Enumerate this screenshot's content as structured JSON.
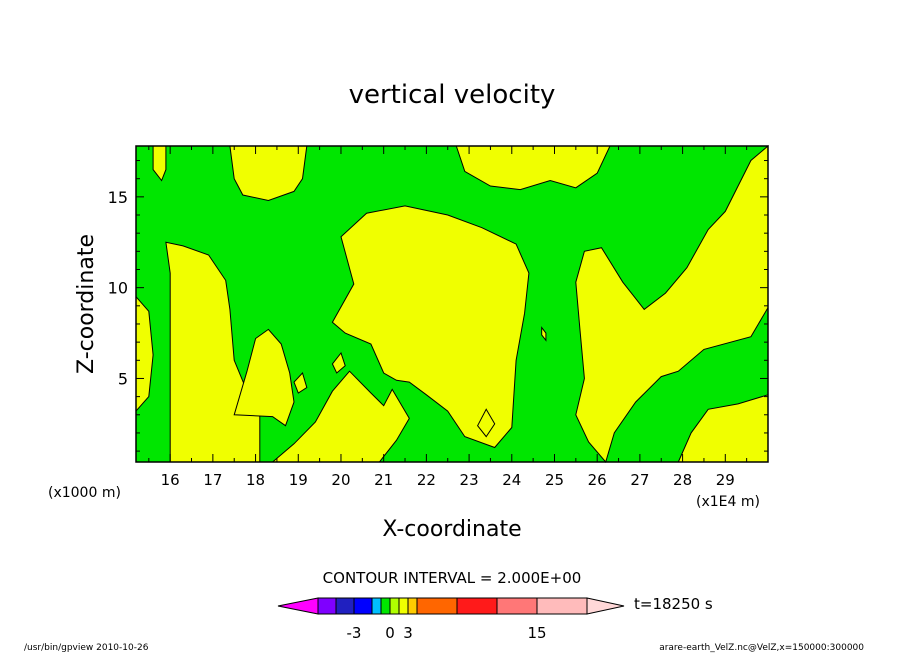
{
  "chart_data": {
    "type": "heatmap",
    "title": "vertical velocity",
    "xlabel": "X-coordinate",
    "ylabel": "Z-coordinate",
    "x_unit_left": "(x1000 m)",
    "x_unit_right": "(x1E4 m)",
    "xlim": [
      15.2,
      30.0
    ],
    "ylim": [
      0.4,
      17.8
    ],
    "x_ticks": [
      "16",
      "17",
      "18",
      "19",
      "20",
      "21",
      "22",
      "23",
      "24",
      "25",
      "26",
      "27",
      "28",
      "29"
    ],
    "y_ticks": [
      "5",
      "10",
      "15"
    ],
    "contour_interval_text": "CONTOUR INTERVAL = 2.000E+00",
    "time_label": "t=18250 s",
    "colors": {
      "low": "#00e600",
      "high": "#f0ff00",
      "outline": "#000000"
    },
    "regions": [
      {
        "name": "top-left-streak",
        "points": [
          [
            15.6,
            17.8
          ],
          [
            15.9,
            17.8
          ],
          [
            15.9,
            16.5
          ],
          [
            15.8,
            15.9
          ],
          [
            15.6,
            16.5
          ]
        ]
      },
      {
        "name": "top-upper-middle",
        "points": [
          [
            17.4,
            17.8
          ],
          [
            19.2,
            17.8
          ],
          [
            19.1,
            16.0
          ],
          [
            18.9,
            15.3
          ],
          [
            18.3,
            14.8
          ],
          [
            17.7,
            15.1
          ],
          [
            17.5,
            16.0
          ]
        ]
      },
      {
        "name": "top-upper-right",
        "points": [
          [
            22.7,
            17.8
          ],
          [
            26.3,
            17.8
          ],
          [
            26.0,
            16.3
          ],
          [
            25.5,
            15.5
          ],
          [
            24.9,
            15.9
          ],
          [
            24.2,
            15.4
          ],
          [
            23.5,
            15.6
          ],
          [
            22.9,
            16.4
          ]
        ]
      },
      {
        "name": "left-column",
        "points": [
          [
            16.0,
            0.4
          ],
          [
            16.0,
            10.8
          ],
          [
            15.9,
            12.5
          ],
          [
            16.3,
            12.3
          ],
          [
            16.9,
            11.8
          ],
          [
            17.3,
            10.4
          ],
          [
            17.4,
            8.8
          ],
          [
            17.5,
            6.0
          ],
          [
            17.8,
            4.3
          ],
          [
            18.1,
            2.9
          ],
          [
            18.1,
            0.4
          ]
        ]
      },
      {
        "name": "left-strips",
        "points": [
          [
            15.2,
            9.5
          ],
          [
            15.5,
            8.7
          ],
          [
            15.6,
            6.3
          ],
          [
            15.5,
            4.0
          ],
          [
            15.2,
            3.2
          ]
        ]
      },
      {
        "name": "lower-left-bump",
        "points": [
          [
            17.5,
            3.0
          ],
          [
            17.8,
            5.4
          ],
          [
            18.0,
            7.2
          ],
          [
            18.3,
            7.7
          ],
          [
            18.6,
            6.9
          ],
          [
            18.8,
            5.3
          ],
          [
            18.9,
            3.7
          ],
          [
            18.7,
            2.4
          ],
          [
            18.4,
            2.9
          ]
        ]
      },
      {
        "name": "central-blob",
        "points": [
          [
            19.8,
            8.1
          ],
          [
            20.3,
            10.2
          ],
          [
            20.0,
            12.8
          ],
          [
            20.6,
            14.1
          ],
          [
            21.5,
            14.5
          ],
          [
            22.5,
            14.0
          ],
          [
            23.3,
            13.3
          ],
          [
            24.1,
            12.4
          ],
          [
            24.4,
            10.8
          ],
          [
            24.3,
            8.6
          ],
          [
            24.1,
            6.0
          ],
          [
            24.0,
            2.3
          ],
          [
            23.6,
            1.2
          ],
          [
            22.9,
            1.8
          ],
          [
            22.5,
            3.2
          ],
          [
            22.0,
            4.1
          ],
          [
            21.6,
            4.8
          ],
          [
            21.3,
            4.9
          ],
          [
            21.0,
            5.3
          ],
          [
            20.7,
            6.9
          ],
          [
            20.1,
            7.5
          ]
        ]
      },
      {
        "name": "lower-middle-band",
        "points": [
          [
            18.4,
            0.4
          ],
          [
            18.9,
            1.4
          ],
          [
            19.4,
            2.6
          ],
          [
            19.8,
            4.3
          ],
          [
            20.2,
            5.4
          ],
          [
            20.7,
            4.2
          ],
          [
            21.0,
            3.5
          ],
          [
            21.2,
            4.4
          ],
          [
            21.6,
            2.8
          ],
          [
            21.3,
            1.6
          ],
          [
            20.9,
            0.4
          ]
        ]
      },
      {
        "name": "right-blob",
        "points": [
          [
            26.2,
            0.4
          ],
          [
            26.4,
            2.0
          ],
          [
            26.9,
            3.7
          ],
          [
            27.5,
            5.1
          ],
          [
            27.9,
            5.4
          ],
          [
            28.5,
            6.6
          ],
          [
            29.6,
            7.3
          ],
          [
            30.0,
            8.9
          ],
          [
            30.0,
            17.8
          ],
          [
            29.6,
            17.0
          ],
          [
            29.0,
            14.2
          ],
          [
            28.6,
            13.2
          ],
          [
            28.1,
            11.1
          ],
          [
            27.6,
            9.7
          ],
          [
            27.1,
            8.8
          ],
          [
            26.6,
            10.3
          ],
          [
            26.1,
            12.2
          ],
          [
            25.7,
            12.0
          ],
          [
            25.5,
            10.3
          ],
          [
            25.6,
            7.6
          ],
          [
            25.7,
            5.0
          ],
          [
            25.5,
            3.0
          ],
          [
            25.8,
            1.5
          ]
        ]
      },
      {
        "name": "right-lower-corner",
        "points": [
          [
            27.9,
            0.4
          ],
          [
            28.2,
            2.0
          ],
          [
            28.6,
            3.3
          ],
          [
            29.3,
            3.6
          ],
          [
            30.0,
            4.1
          ],
          [
            30.0,
            0.4
          ]
        ]
      },
      {
        "name": "dot-near-25",
        "points": [
          [
            24.7,
            7.8
          ],
          [
            24.8,
            7.5
          ],
          [
            24.8,
            7.1
          ],
          [
            24.7,
            7.4
          ]
        ]
      },
      {
        "name": "small-spot-19",
        "points": [
          [
            18.9,
            4.8
          ],
          [
            19.1,
            5.3
          ],
          [
            19.2,
            4.5
          ],
          [
            19.0,
            4.2
          ]
        ]
      },
      {
        "name": "small-spot-20",
        "points": [
          [
            19.8,
            5.8
          ],
          [
            20.0,
            6.4
          ],
          [
            20.1,
            5.7
          ],
          [
            19.9,
            5.3
          ]
        ]
      },
      {
        "name": "small-spot-23",
        "points": [
          [
            23.2,
            2.4
          ],
          [
            23.4,
            3.3
          ],
          [
            23.6,
            2.5
          ],
          [
            23.4,
            1.8
          ]
        ]
      }
    ],
    "colorbar": {
      "segments": [
        {
          "color": "#ff00ff"
        },
        {
          "color": "#7f00ff"
        },
        {
          "color": "#2020c0"
        },
        {
          "color": "#0000ff"
        },
        {
          "color": "#00bfff"
        },
        {
          "color": "#00e600"
        },
        {
          "color": "#b0ff00"
        },
        {
          "color": "#f0ff00"
        },
        {
          "color": "#ffcc00"
        },
        {
          "color": "#ff6600"
        },
        {
          "color": "#ff1a1a"
        },
        {
          "color": "#ff7777"
        },
        {
          "color": "#ffbbbb"
        },
        {
          "color": "#ffd8d8"
        }
      ],
      "labels": [
        {
          "text": "-3",
          "after_segment": 3
        },
        {
          "text": "0",
          "after_segment": 6
        },
        {
          "text": "3",
          "after_segment": 8
        },
        {
          "text": "15",
          "after_segment": 12
        }
      ]
    }
  },
  "footer": {
    "left": "/usr/bin/gpview   2010-10-26",
    "right": "arare-earth_VelZ.nc@VelZ,x=150000:300000"
  }
}
